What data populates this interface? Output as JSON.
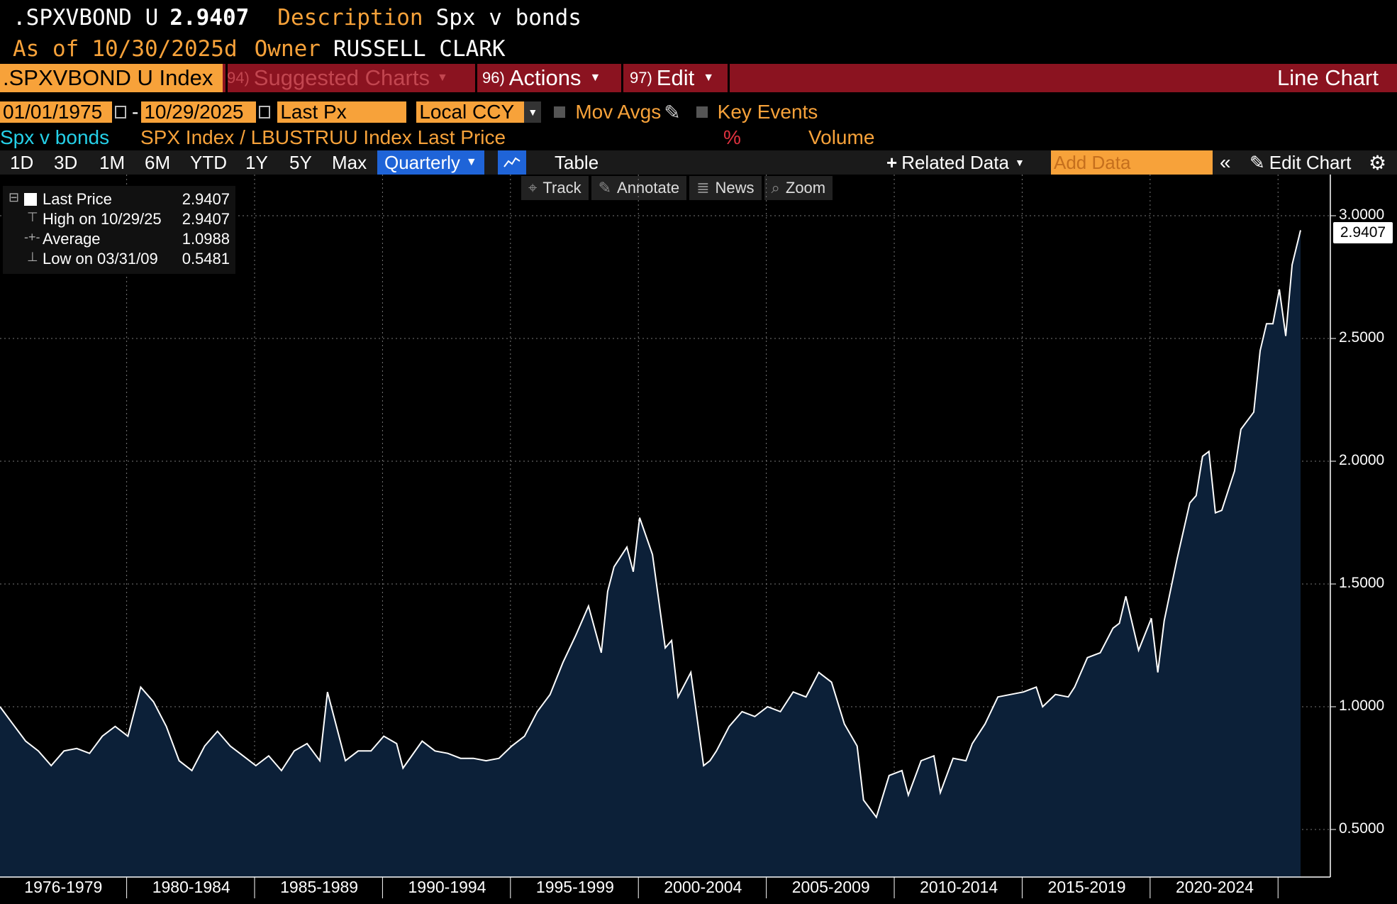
{
  "header": {
    "ticker": ".SPXVBOND U",
    "last_value": "2.9407",
    "description_label": "Description",
    "description": "Spx v bonds",
    "asof_label": "As of",
    "asof_date": "10/30/2025d",
    "owner_label": "Owner",
    "owner": "RUSSELL CLARK"
  },
  "menu": {
    "index_box": ".SPXVBOND U Index",
    "suggested_num": "94)",
    "suggested": "Suggested Charts",
    "actions_num": "96)",
    "actions": "Actions",
    "edit_num": "97)",
    "edit": "Edit",
    "chart_type": "Line Chart"
  },
  "controls": {
    "start_date": "01/01/1975",
    "dash": "-",
    "end_date": "10/29/2025",
    "price_field": "Last Px",
    "currency": "Local CCY",
    "mov_avgs": "Mov Avgs",
    "key_events": "Key Events"
  },
  "legend_row": {
    "series_name": "Spx v bonds",
    "formula": "SPX Index / LBUSTRUU Index Last Price",
    "percent": "%",
    "volume": "Volume"
  },
  "periods": [
    "1D",
    "3D",
    "1M",
    "6M",
    "YTD",
    "1Y",
    "5Y",
    "Max"
  ],
  "frequency": "Quarterly",
  "table_label": "Table",
  "related_data": "Related Data",
  "add_data_placeholder": "Add Data",
  "edit_chart": "Edit Chart",
  "tools": {
    "track": "Track",
    "annotate": "Annotate",
    "news": "News",
    "zoom": "Zoom"
  },
  "infobox": {
    "last_price_label": "Last Price",
    "last_price": "2.9407",
    "high_label": "High on 10/29/25",
    "high": "2.9407",
    "average_label": "Average",
    "average": "1.0988",
    "low_label": "Low on 03/31/09",
    "low": "0.5481"
  },
  "last_label": "2.9407",
  "colors": {
    "orange": "#f7a23a",
    "red_bar": "#8b1320",
    "area_fill": "#0c2038",
    "line": "#ffffff",
    "teal": "#25d0e8"
  },
  "chart_data": {
    "type": "area",
    "title": "",
    "xlabel": "",
    "ylabel": "",
    "ylim": [
      0.5,
      3.0
    ],
    "yticks": [
      "3.0000",
      "2.5000",
      "2.0000",
      "1.5000",
      "1.0000",
      "0.5000"
    ],
    "xtick_labels": [
      "1976-1979",
      "1980-1984",
      "1985-1989",
      "1990-1994",
      "1995-1999",
      "2000-2004",
      "2005-2009",
      "2010-2014",
      "2015-2019",
      "2020-2024"
    ],
    "grid": true,
    "series": [
      {
        "name": "Spx v bonds",
        "x": [
          1975.0,
          1975.5,
          1976.0,
          1976.5,
          1977.0,
          1977.5,
          1978.0,
          1978.5,
          1979.0,
          1979.5,
          1980.0,
          1980.5,
          1981.0,
          1981.5,
          1982.0,
          1982.5,
          1983.0,
          1983.5,
          1984.0,
          1984.5,
          1985.0,
          1985.5,
          1986.0,
          1986.5,
          1987.0,
          1987.5,
          1987.8,
          1988.5,
          1989.0,
          1989.5,
          1990.0,
          1990.5,
          1990.75,
          1991.5,
          1992.0,
          1992.5,
          1993.0,
          1993.5,
          1994.0,
          1994.5,
          1995.0,
          1995.5,
          1996.0,
          1996.5,
          1997.0,
          1997.5,
          1998.0,
          1998.5,
          1998.75,
          1999.0,
          1999.5,
          1999.75,
          2000.0,
          2000.5,
          2001.0,
          2001.25,
          2001.5,
          2002.0,
          2002.5,
          2002.75,
          2003.0,
          2003.5,
          2004.0,
          2004.5,
          2005.0,
          2005.5,
          2006.0,
          2006.5,
          2007.0,
          2007.5,
          2008.0,
          2008.5,
          2008.75,
          2009.25,
          2009.75,
          2010.25,
          2010.5,
          2011.0,
          2011.5,
          2011.75,
          2012.25,
          2012.75,
          2013.0,
          2013.5,
          2014.0,
          2014.5,
          2015.0,
          2015.5,
          2015.75,
          2016.25,
          2016.75,
          2017.0,
          2017.5,
          2018.0,
          2018.5,
          2018.75,
          2019.0,
          2019.5,
          2020.0,
          2020.25,
          2020.5,
          2021.0,
          2021.5,
          2021.75,
          2022.0,
          2022.25,
          2022.5,
          2022.75,
          2023.25,
          2023.5,
          2024.0,
          2024.25,
          2024.5,
          2024.75,
          2025.0,
          2025.25,
          2025.5,
          2025.83
        ],
        "values": [
          1.0,
          0.93,
          0.86,
          0.82,
          0.76,
          0.82,
          0.83,
          0.81,
          0.88,
          0.92,
          0.88,
          1.08,
          1.02,
          0.92,
          0.78,
          0.74,
          0.84,
          0.9,
          0.84,
          0.8,
          0.76,
          0.8,
          0.74,
          0.82,
          0.85,
          0.78,
          1.06,
          0.78,
          0.82,
          0.82,
          0.88,
          0.85,
          0.75,
          0.86,
          0.82,
          0.81,
          0.79,
          0.79,
          0.78,
          0.79,
          0.84,
          0.88,
          0.98,
          1.05,
          1.18,
          1.29,
          1.41,
          1.22,
          1.47,
          1.57,
          1.65,
          1.55,
          1.77,
          1.62,
          1.24,
          1.27,
          1.04,
          1.14,
          0.76,
          0.78,
          0.82,
          0.92,
          0.98,
          0.96,
          1.0,
          0.98,
          1.06,
          1.04,
          1.14,
          1.1,
          0.93,
          0.84,
          0.62,
          0.55,
          0.72,
          0.74,
          0.64,
          0.78,
          0.8,
          0.65,
          0.79,
          0.78,
          0.85,
          0.93,
          1.04,
          1.05,
          1.06,
          1.08,
          1.0,
          1.05,
          1.04,
          1.08,
          1.2,
          1.22,
          1.32,
          1.34,
          1.45,
          1.23,
          1.36,
          1.14,
          1.35,
          1.6,
          1.83,
          1.86,
          2.02,
          2.04,
          1.79,
          1.8,
          1.96,
          2.13,
          2.2,
          2.45,
          2.56,
          2.56,
          2.7,
          2.51,
          2.8,
          2.9407
        ]
      }
    ]
  }
}
